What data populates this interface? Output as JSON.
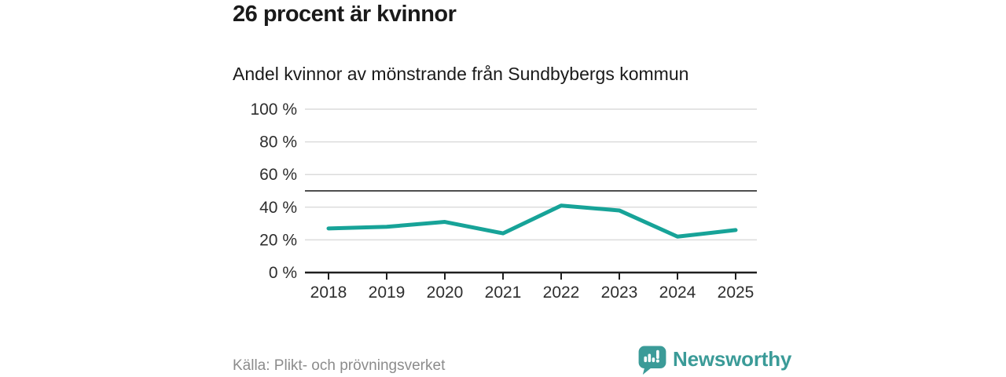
{
  "header": {
    "title": "26 procent är kvinnor",
    "subtitle": "Andel kvinnor av mönstrande från Sundbybergs kommun"
  },
  "chart_data": {
    "type": "line",
    "title": "26 procent är kvinnor",
    "subtitle": "Andel kvinnor av mönstrande från Sundbybergs kommun",
    "x": [
      "2018",
      "2019",
      "2020",
      "2021",
      "2022",
      "2023",
      "2024",
      "2025"
    ],
    "series": [
      {
        "name": "Andel kvinnor av mönstrande",
        "values": [
          27,
          28,
          31,
          24,
          41,
          38,
          22,
          26
        ]
      }
    ],
    "ylim": [
      0,
      100
    ],
    "yticks": [
      0,
      20,
      40,
      60,
      80,
      100
    ],
    "ytick_suffix": " %",
    "reference_line": 50,
    "grid": true,
    "legend_position": "none",
    "line_color": "#17a398"
  },
  "footer": {
    "source": "Källa: Plikt- och prövningsverket",
    "brand": "Newsworthy",
    "brand_color": "#3b9b98"
  },
  "colors": {
    "accent": "#17a398",
    "grid": "#dcdcdc",
    "reference": "#4f4f4f",
    "axis": "#1f1f1f",
    "tick_text": "#2e2e2e",
    "text": "#1a1a1a",
    "muted": "#8c8c8c"
  }
}
